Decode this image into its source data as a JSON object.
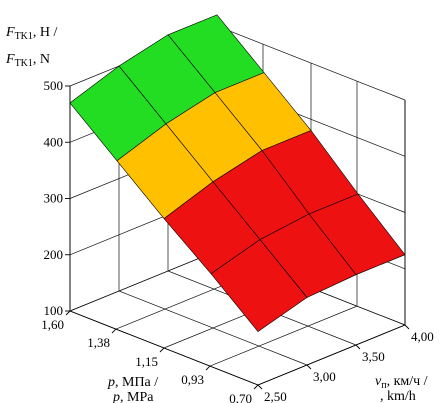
{
  "chart_data": {
    "type": "surface3d",
    "title": "",
    "z_axis": {
      "label_line1": "F",
      "label_line1_sub": "TK1",
      "label_line1_unit": ", Н /",
      "label_line2": "F",
      "label_line2_sub": "TK1",
      "label_line2_unit": ", N",
      "ticks": [
        "100",
        "200",
        "300",
        "400",
        "500"
      ],
      "range": [
        100,
        500
      ]
    },
    "p_axis": {
      "label_var": "p",
      "label_unit_line1": ", МПа /",
      "label_unit_line2": ", MPa",
      "ticks": [
        "1,60",
        "1,38",
        "1,15",
        "0,93",
        "0,70"
      ],
      "values": [
        1.6,
        1.38,
        1.15,
        0.93,
        0.7
      ],
      "range": [
        0.7,
        1.6
      ]
    },
    "v_axis": {
      "label_var": "v",
      "label_sub": "п",
      "label_unit_line1": ", км/ч /",
      "label_unit_line2": ", km/h",
      "ticks": [
        "2,50",
        "3,00",
        "3,50",
        "4,00"
      ],
      "values": [
        2.5,
        3.0,
        3.5,
        4.0
      ],
      "range": [
        2.5,
        4.0
      ]
    },
    "grid": true,
    "surface": {
      "p_values": [
        1.6,
        1.375,
        1.15,
        0.925,
        0.7
      ],
      "v_values": [
        2.5,
        3.0,
        3.5,
        4.0
      ],
      "z": [
        [
          470,
          500,
          520,
          520
        ],
        [
          400,
          430,
          450,
          450
        ],
        [
          330,
          360,
          380,
          380
        ],
        [
          265,
          290,
          300,
          300
        ],
        [
          195,
          220,
          225,
          225
        ]
      ]
    },
    "color_bands": [
      {
        "from": 100,
        "to": 200,
        "color": "#9999ee"
      },
      {
        "from": 200,
        "to": 350,
        "color": "#ee1111"
      },
      {
        "from": 350,
        "to": 450,
        "color": "#ffc000"
      },
      {
        "from": 450,
        "to": 550,
        "color": "#22dd22"
      }
    ]
  }
}
